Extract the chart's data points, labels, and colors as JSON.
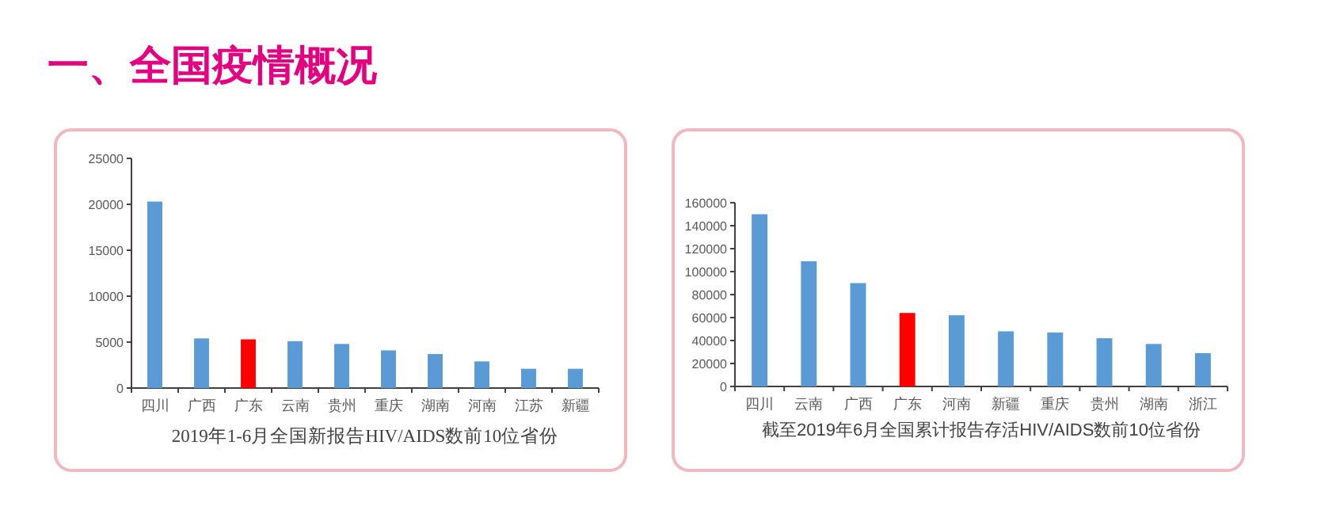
{
  "chart_data": [
    {
      "type": "other",
      "title": "一、全国疫情概况"
    },
    {
      "type": "bar",
      "title": "2019年1-6月全国新报告HIV/AIDS数前10位省份",
      "categories": [
        "四川",
        "广西",
        "广东",
        "云南",
        "贵州",
        "重庆",
        "湖南",
        "河南",
        "江苏",
        "新疆"
      ],
      "values": [
        20300,
        5400,
        5300,
        5100,
        4800,
        4100,
        3700,
        2900,
        2100,
        2100
      ],
      "colors": [
        "#5b9bd5",
        "#5b9bd5",
        "#ff0000",
        "#5b9bd5",
        "#5b9bd5",
        "#5b9bd5",
        "#5b9bd5",
        "#5b9bd5",
        "#5b9bd5",
        "#5b9bd5"
      ],
      "ylim": [
        0,
        25000
      ],
      "yticks": [
        0,
        5000,
        10000,
        15000,
        20000,
        25000
      ]
    },
    {
      "type": "bar",
      "title": "截至2019年6月全国累计报告存活HIV/AIDS数前10位省份",
      "categories": [
        "四川",
        "云南",
        "广西",
        "广东",
        "河南",
        "新疆",
        "重庆",
        "贵州",
        "湖南",
        "浙江"
      ],
      "values": [
        150000,
        109000,
        90000,
        64000,
        62000,
        48000,
        47000,
        42000,
        37000,
        29000
      ],
      "colors": [
        "#5b9bd5",
        "#5b9bd5",
        "#5b9bd5",
        "#ff0000",
        "#5b9bd5",
        "#5b9bd5",
        "#5b9bd5",
        "#5b9bd5",
        "#5b9bd5",
        "#5b9bd5"
      ],
      "ylim": [
        0,
        160000
      ],
      "yticks": [
        0,
        20000,
        40000,
        60000,
        80000,
        100000,
        120000,
        140000,
        160000
      ]
    }
  ]
}
